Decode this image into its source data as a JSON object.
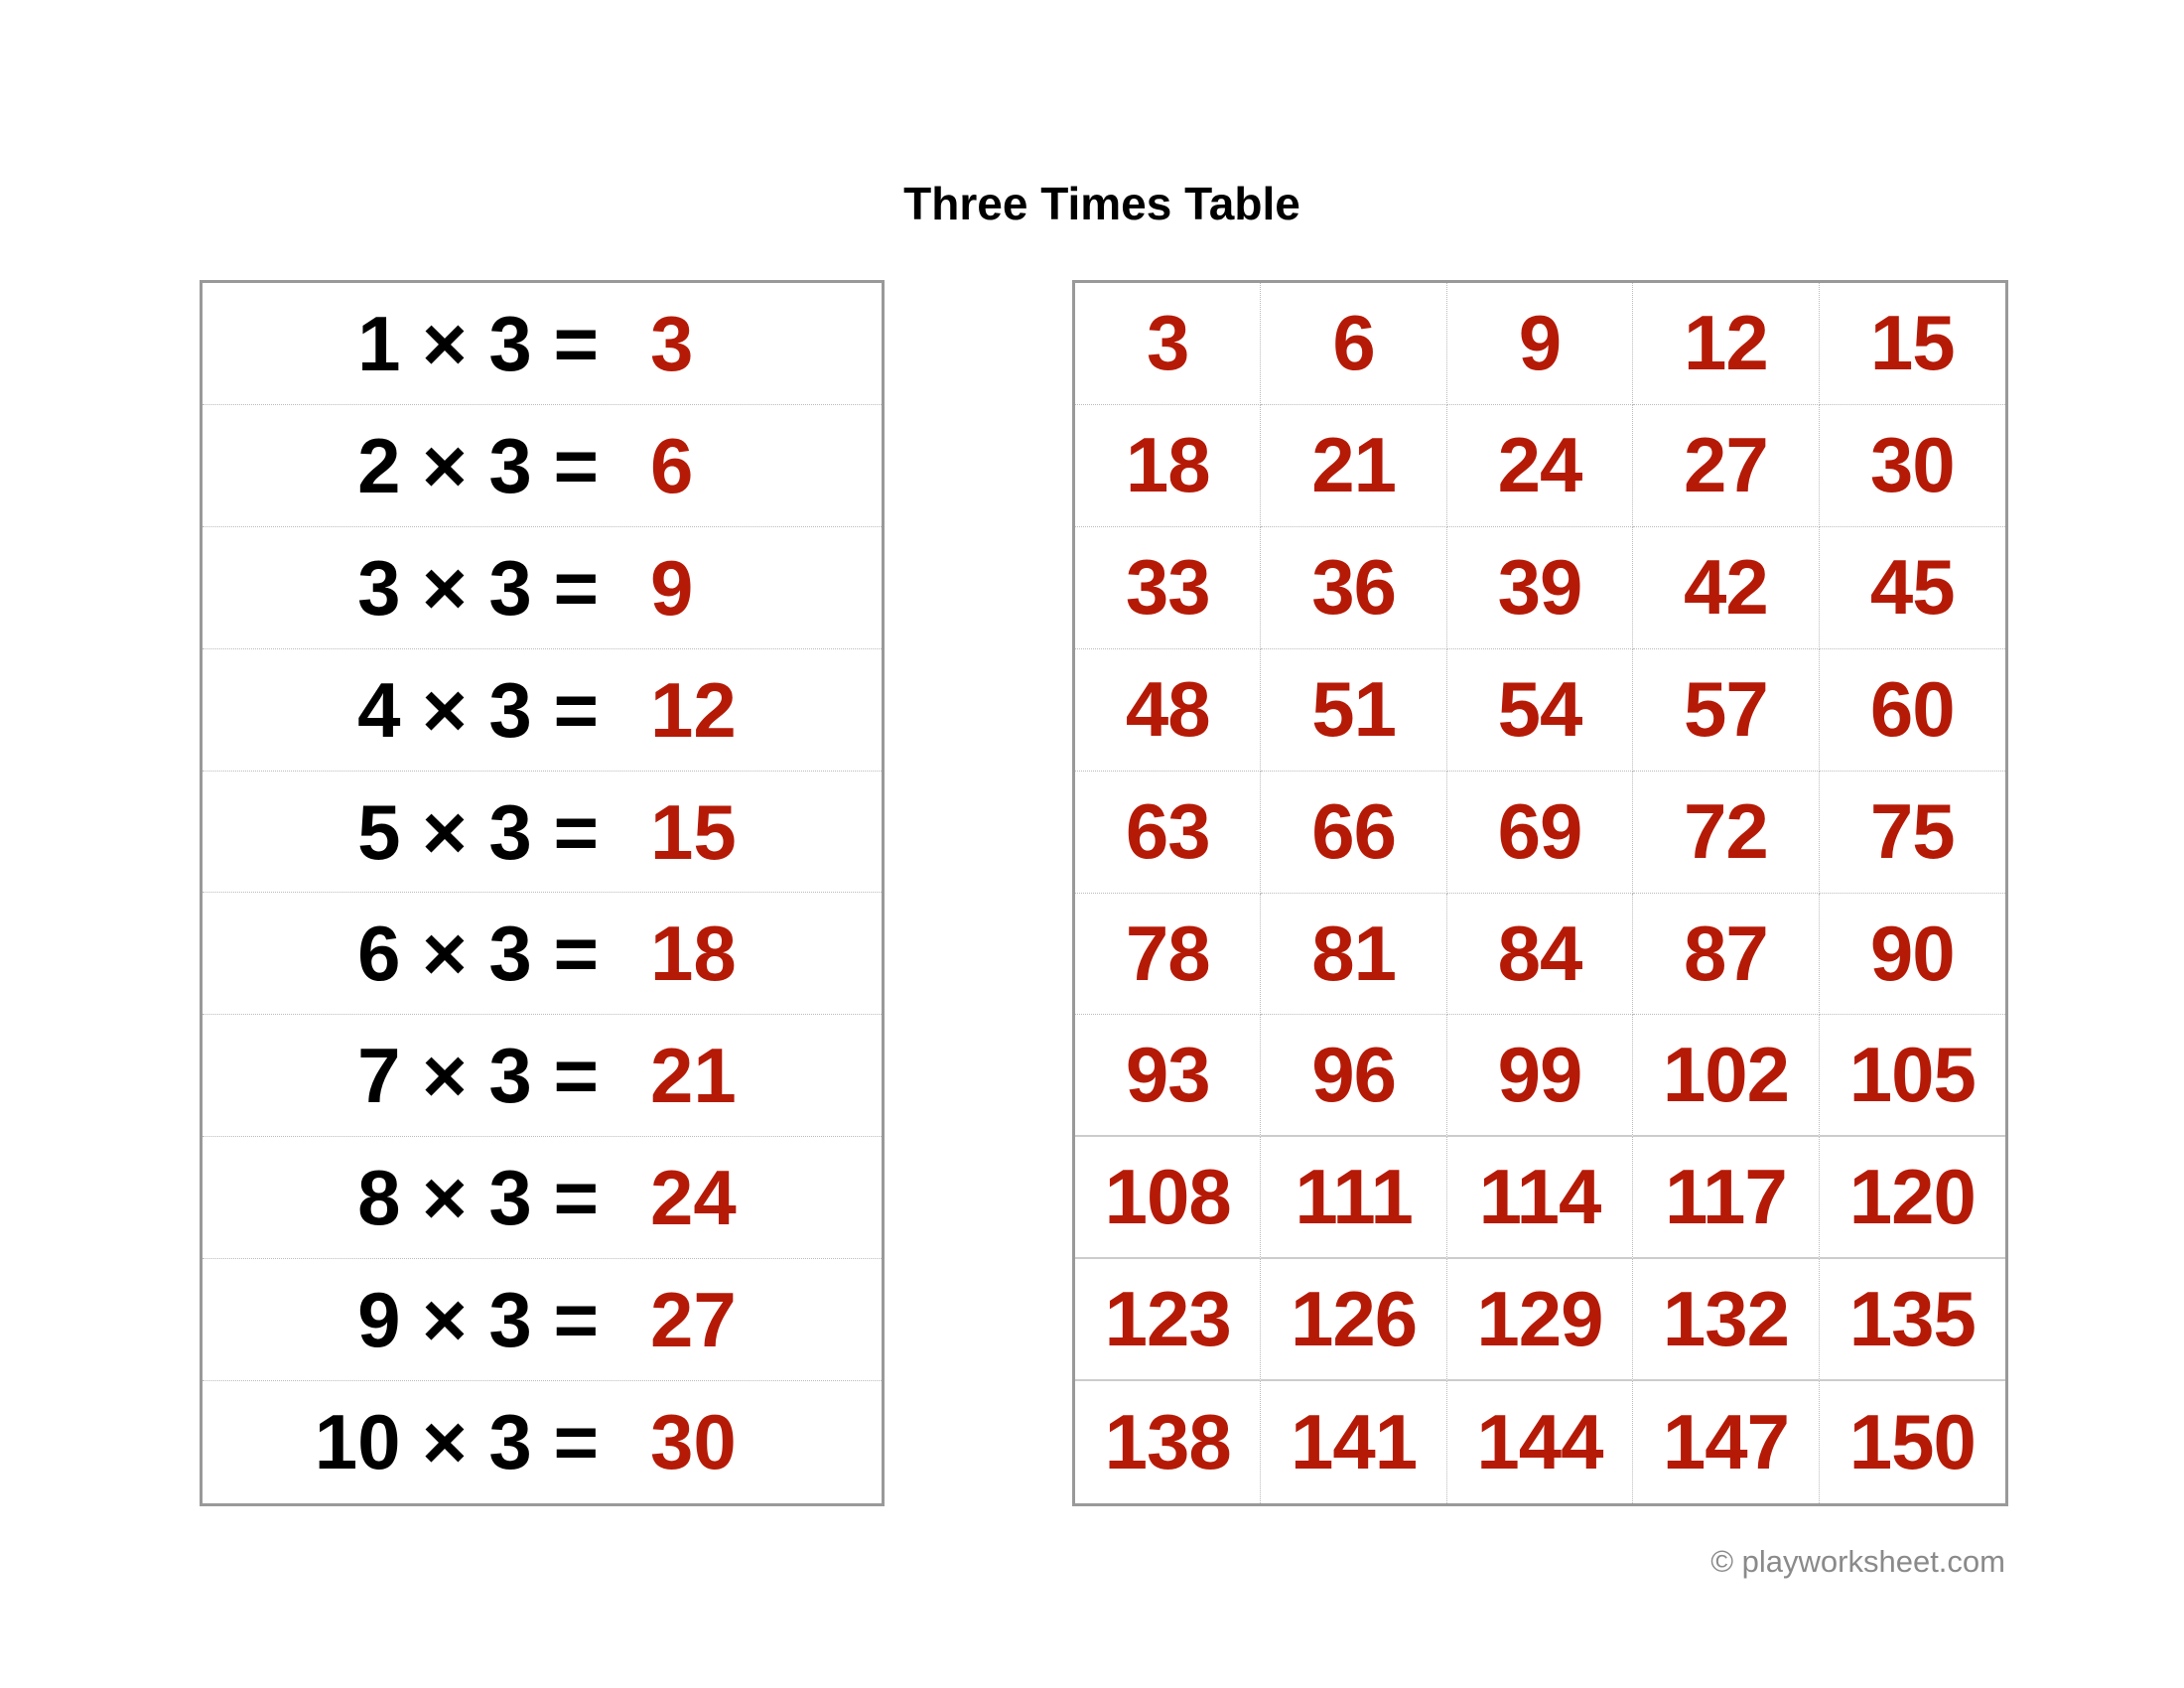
{
  "title": "Three Times Table",
  "colors": {
    "answer": "#b51a07",
    "equation": "#000000",
    "border": "#999999"
  },
  "equations": [
    {
      "expr": "1 × 3 =",
      "answer": "3"
    },
    {
      "expr": "2 × 3 =",
      "answer": "6"
    },
    {
      "expr": "3 × 3 =",
      "answer": "9"
    },
    {
      "expr": "4 × 3 =",
      "answer": "12"
    },
    {
      "expr": "5 × 3 =",
      "answer": "15"
    },
    {
      "expr": "6 × 3 =",
      "answer": "18"
    },
    {
      "expr": "7 × 3 =",
      "answer": "21"
    },
    {
      "expr": "8 × 3 =",
      "answer": "24"
    },
    {
      "expr": "9 × 3 =",
      "answer": "27"
    },
    {
      "expr": "10 × 3 =",
      "answer": "30"
    }
  ],
  "multiples": [
    [
      "3",
      "6",
      "9",
      "12",
      "15"
    ],
    [
      "18",
      "21",
      "24",
      "27",
      "30"
    ],
    [
      "33",
      "36",
      "39",
      "42",
      "45"
    ],
    [
      "48",
      "51",
      "54",
      "57",
      "60"
    ],
    [
      "63",
      "66",
      "69",
      "72",
      "75"
    ],
    [
      "78",
      "81",
      "84",
      "87",
      "90"
    ],
    [
      "93",
      "96",
      "99",
      "102",
      "105"
    ],
    [
      "108",
      "111",
      "114",
      "117",
      "120"
    ],
    [
      "123",
      "126",
      "129",
      "132",
      "135"
    ],
    [
      "138",
      "141",
      "144",
      "147",
      "150"
    ]
  ],
  "footer": "© playworksheet.com"
}
